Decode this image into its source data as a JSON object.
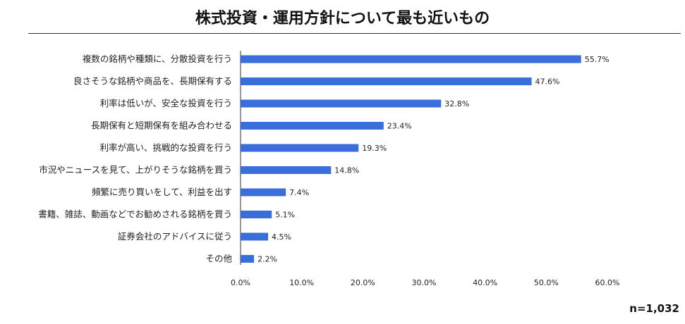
{
  "title": "株式投資・運用方針について最も近いもの",
  "sample_label": "n=1,032",
  "colors": {
    "bar": "#3a6edb",
    "axis": "#333333",
    "text": "#222222"
  },
  "chart_data": {
    "type": "bar",
    "orientation": "horizontal",
    "title": "株式投資・運用方針について最も近いもの",
    "categories": [
      "複数の銘柄や種類に、分散投資を行う",
      "良さそうな銘柄や商品を、長期保有する",
      "利率は低いが、安全な投資を行う",
      "長期保有と短期保有を組み合わせる",
      "利率が高い、挑戦的な投資を行う",
      "市況やニュースを見て、上がりそうな銘柄を買う",
      "頻繁に売り買いをして、利益を出す",
      "書籍、雑誌、動画などでお勧めされる銘柄を買う",
      "証券会社のアドバイスに従う",
      "その他"
    ],
    "values": [
      55.7,
      47.6,
      32.8,
      23.4,
      19.3,
      14.8,
      7.4,
      5.1,
      4.5,
      2.2
    ],
    "value_labels": [
      "55.7%",
      "47.6%",
      "32.8%",
      "23.4%",
      "19.3%",
      "14.8%",
      "7.4%",
      "5.1%",
      "4.5%",
      "2.2%"
    ],
    "xlim": [
      0,
      60
    ],
    "xticks": [
      0,
      10,
      20,
      30,
      40,
      50,
      60
    ],
    "xtick_labels": [
      "0.0%",
      "10.0%",
      "20.0%",
      "30.0%",
      "40.0%",
      "50.0%",
      "60.0%"
    ],
    "grid": false,
    "legend": "none"
  }
}
